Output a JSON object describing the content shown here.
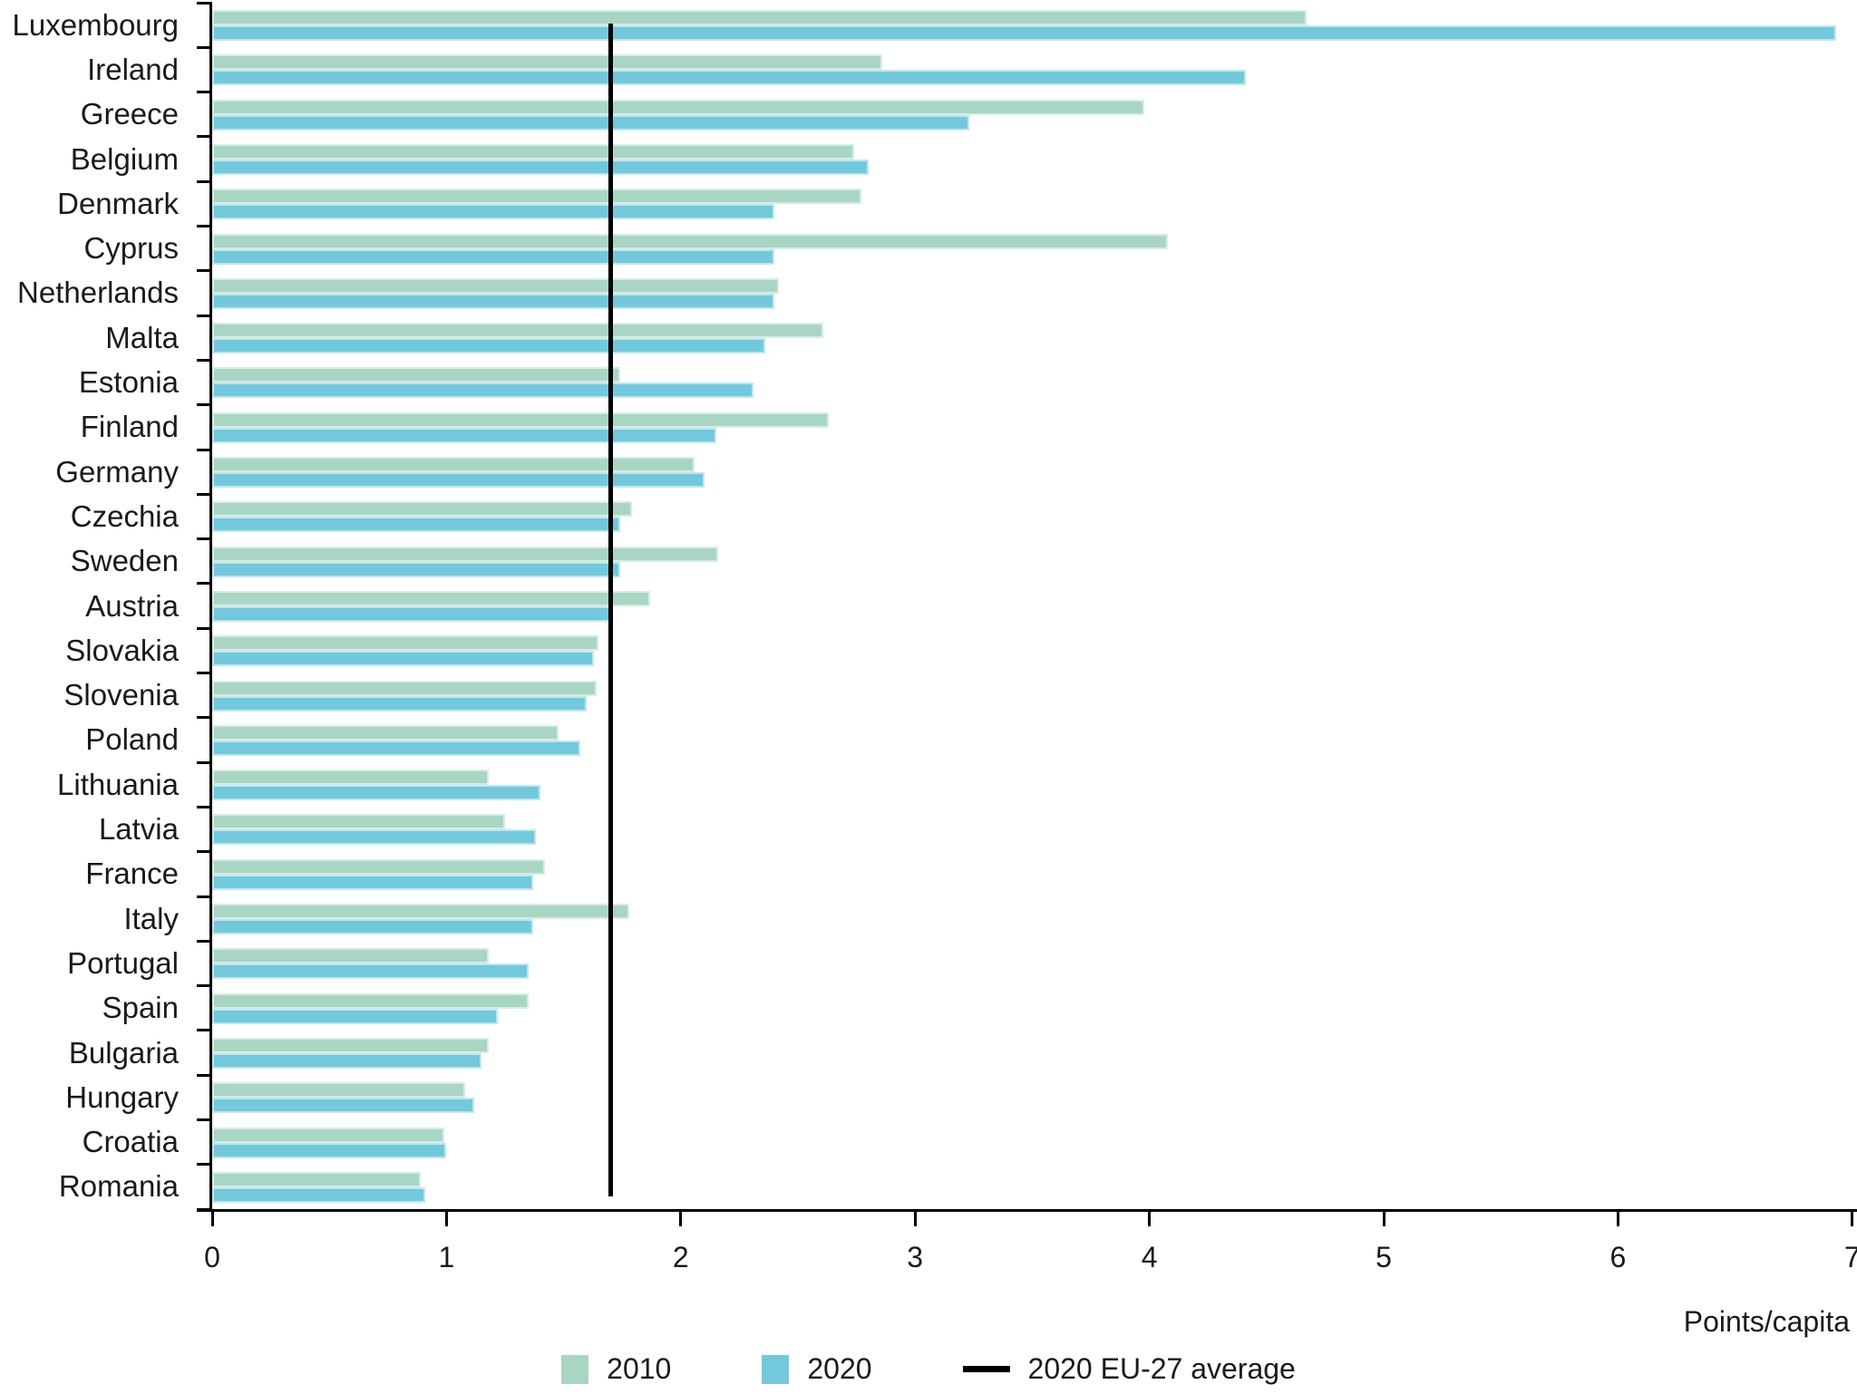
{
  "chart_data": {
    "type": "bar",
    "orientation": "horizontal",
    "title": "",
    "xlabel": "Points/capita",
    "xlim": [
      0,
      7
    ],
    "x_ticks": [
      "0",
      "1",
      "2",
      "3",
      "4",
      "5",
      "6",
      "7"
    ],
    "grid": false,
    "legend_position": "bottom",
    "categories": [
      "Luxembourg",
      "Ireland",
      "Greece",
      "Belgium",
      "Denmark",
      "Cyprus",
      "Netherlands",
      "Malta",
      "Estonia",
      "Finland",
      "Germany",
      "Czechia",
      "Sweden",
      "Austria",
      "Slovakia",
      "Slovenia",
      "Poland",
      "Lithuania",
      "Latvia",
      "France",
      "Italy",
      "Portugal",
      "Spain",
      "Bulgaria",
      "Hungary",
      "Croatia",
      "Romania"
    ],
    "series": [
      {
        "name": "2010",
        "color": "#a9d6c3",
        "values": [
          4.67,
          2.86,
          3.98,
          2.74,
          2.77,
          4.08,
          2.42,
          2.61,
          1.74,
          2.63,
          2.06,
          1.79,
          2.16,
          1.87,
          1.65,
          1.64,
          1.48,
          1.18,
          1.25,
          1.42,
          1.78,
          1.18,
          1.35,
          1.18,
          1.08,
          0.99,
          0.89
        ]
      },
      {
        "name": "2020",
        "color": "#73c8db",
        "values": [
          6.93,
          4.41,
          3.23,
          2.8,
          2.4,
          2.4,
          2.4,
          2.36,
          2.31,
          2.15,
          2.1,
          1.74,
          1.74,
          1.71,
          1.63,
          1.6,
          1.57,
          1.4,
          1.38,
          1.37,
          1.37,
          1.35,
          1.22,
          1.15,
          1.12,
          1.0,
          0.91
        ]
      }
    ],
    "avg_line": {
      "label": "2020 EU-27 average",
      "value": 1.7,
      "color": "#000000"
    }
  },
  "colors": {
    "axis": "#000000",
    "text": "#1a1a1a",
    "background": "#ffffff"
  }
}
